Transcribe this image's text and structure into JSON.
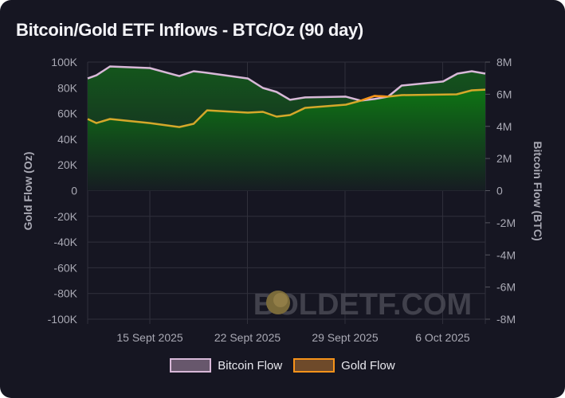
{
  "title": "Bitcoin/Gold ETF Inflows - BTC/Oz (90 day)",
  "watermark": "BOLDETF.COM",
  "colors": {
    "bitcoin": "#d8b8d8",
    "gold_below": "#d4a82a",
    "gold_above": "#f7931a",
    "fill_dark": "#14521c",
    "fill_bright": "#0e7012"
  },
  "chart_data": {
    "type": "area",
    "title": "Bitcoin/Gold ETF Inflows - BTC/Oz (90 day)",
    "x_unit": "days since 15 Sept 2025",
    "x_ticks": [
      {
        "label": "15 Sept 2025",
        "x": 0
      },
      {
        "label": "22 Sept 2025",
        "x": 7
      },
      {
        "label": "29 Sept 2025",
        "x": 14
      },
      {
        "label": "6 Oct 2025",
        "x": 21
      }
    ],
    "xlim": [
      -4.46,
      24.06
    ],
    "left_axis": {
      "label": "Gold Flow (Oz)",
      "ylim": [
        -100000,
        100000
      ],
      "ticks": [
        "100K",
        "80K",
        "60K",
        "40K",
        "20K",
        "0",
        "-20K",
        "-40K",
        "-60K",
        "-80K",
        "-100K"
      ]
    },
    "right_axis": {
      "label": "Bitcoin Flow (BTC)",
      "ylim": [
        -8000000,
        8000000
      ],
      "ticks": [
        "8M",
        "6M",
        "4M",
        "2M",
        "0",
        "-2M",
        "-4M",
        "-6M",
        "-8M"
      ]
    },
    "legend": [
      "Bitcoin Flow",
      "Gold Flow"
    ],
    "legend_position": "bottom",
    "grid": true,
    "series": [
      {
        "name": "Bitcoin Flow",
        "axis": "right",
        "x": [
          -4.46,
          -3.83,
          -2.86,
          0,
          2.11,
          3.14,
          4.11,
          7.03,
          8.11,
          9.09,
          10.06,
          11.14,
          14.06,
          15.14,
          16.11,
          17.09,
          18.06,
          21.03,
          22.06,
          23.09,
          24.06
        ],
        "y": [
          6980000,
          7180000,
          7730000,
          7630000,
          7130000,
          7430000,
          7330000,
          6980000,
          6390000,
          6140000,
          5650000,
          5800000,
          5850000,
          5600000,
          5700000,
          5850000,
          6540000,
          6790000,
          7280000,
          7430000,
          7280000
        ]
      },
      {
        "name": "Gold Flow",
        "axis": "left",
        "x": [
          -4.46,
          -3.83,
          -2.86,
          0,
          2.11,
          3.14,
          4.11,
          7.03,
          8.11,
          9.09,
          10.06,
          11.14,
          14.06,
          15.14,
          16.11,
          17.09,
          18.06,
          22.0,
          23.09,
          24.06
        ],
        "y": [
          55700,
          52600,
          55700,
          52600,
          49500,
          52000,
          62500,
          60700,
          61300,
          57600,
          58800,
          64400,
          66900,
          70000,
          73700,
          73100,
          74300,
          74900,
          78000,
          78600
        ]
      }
    ]
  }
}
